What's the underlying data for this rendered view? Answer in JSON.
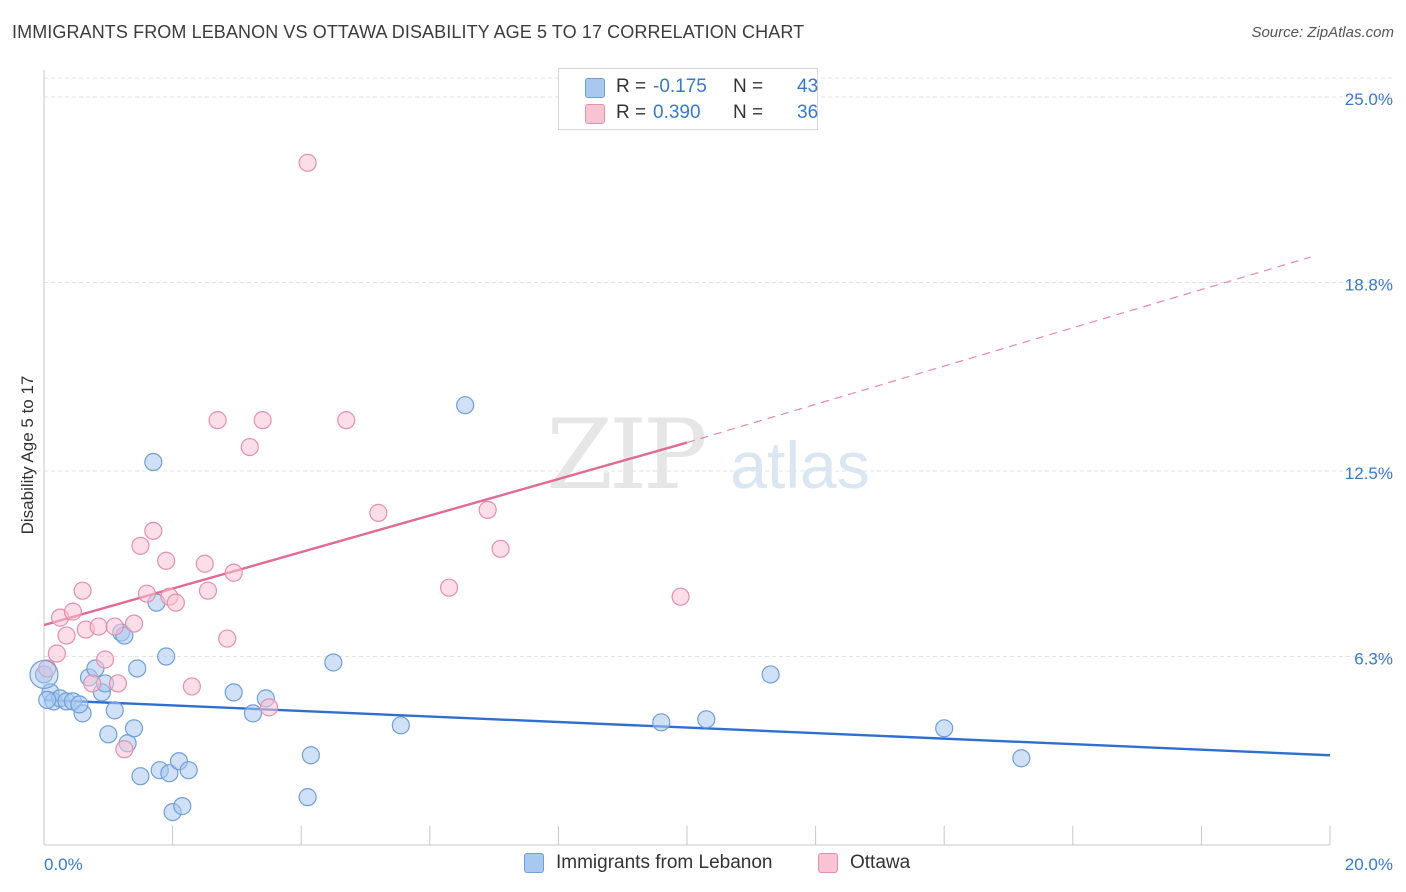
{
  "title": "IMMIGRANTS FROM LEBANON VS OTTAWA DISABILITY AGE 5 TO 17 CORRELATION CHART",
  "source": "Source: ZipAtlas.com",
  "watermark": {
    "zip": "ZIP",
    "atlas": "atlas"
  },
  "legend": {
    "rows": [
      {
        "r_label": "R =",
        "r_value": "-0.175",
        "n_label": "N =",
        "n_value": "43",
        "color": "#a9c8f0",
        "border": "#6f9ed8"
      },
      {
        "r_label": "R =",
        "r_value": "0.390",
        "n_label": "N =",
        "n_value": "36",
        "color": "#f8c3d3",
        "border": "#e58fab"
      }
    ]
  },
  "chart_data": {
    "type": "scatter",
    "title": "IMMIGRANTS FROM LEBANON VS OTTAWA DISABILITY AGE 5 TO 17 CORRELATION CHART",
    "xlabel": "",
    "ylabel": "Disability Age 5 to 17",
    "xlim": [
      0,
      20
    ],
    "ylim": [
      0,
      26
    ],
    "x_tick_labels": [
      "0.0%",
      "20.0%"
    ],
    "y_ticks": [
      6.3,
      12.5,
      18.8,
      25.0
    ],
    "y_tick_labels": [
      "6.3%",
      "12.5%",
      "18.8%",
      "25.0%"
    ],
    "grid": true,
    "legend_position": "bottom-center",
    "series": [
      {
        "name": "Immigrants from Lebanon",
        "color": "#a9c8f0",
        "stroke": "#6f9ed8",
        "line_color": "#2f6fd1",
        "trend": {
          "x": [
            0,
            20
          ],
          "y": [
            4.85,
            3.0
          ]
        },
        "points": [
          [
            0.0,
            5.7
          ],
          [
            0.1,
            5.1
          ],
          [
            0.15,
            4.8
          ],
          [
            0.25,
            4.9
          ],
          [
            0.35,
            4.8
          ],
          [
            0.45,
            4.8
          ],
          [
            0.6,
            4.4
          ],
          [
            0.7,
            5.6
          ],
          [
            0.8,
            5.9
          ],
          [
            0.9,
            5.1
          ],
          [
            0.95,
            5.4
          ],
          [
            1.0,
            3.7
          ],
          [
            1.1,
            4.5
          ],
          [
            1.2,
            7.1
          ],
          [
            1.3,
            3.4
          ],
          [
            1.4,
            3.9
          ],
          [
            1.45,
            5.9
          ],
          [
            1.5,
            2.3
          ],
          [
            1.7,
            12.8
          ],
          [
            1.75,
            8.1
          ],
          [
            1.8,
            2.5
          ],
          [
            1.9,
            6.3
          ],
          [
            1.95,
            2.4
          ],
          [
            2.0,
            1.1
          ],
          [
            2.1,
            2.8
          ],
          [
            2.15,
            1.3
          ],
          [
            2.25,
            2.5
          ],
          [
            2.95,
            5.1
          ],
          [
            3.25,
            4.4
          ],
          [
            3.45,
            4.9
          ],
          [
            4.1,
            1.6
          ],
          [
            4.15,
            3.0
          ],
          [
            4.5,
            6.1
          ],
          [
            5.55,
            4.0
          ],
          [
            6.55,
            14.7
          ],
          [
            9.6,
            4.1
          ],
          [
            10.3,
            4.2
          ],
          [
            11.3,
            5.7
          ],
          [
            14.0,
            3.9
          ],
          [
            15.2,
            2.9
          ],
          [
            0.05,
            4.85
          ],
          [
            0.55,
            4.7
          ],
          [
            1.25,
            7.0
          ]
        ]
      },
      {
        "name": "Ottawa",
        "color": "#f8c3d3",
        "stroke": "#e58fab",
        "line_color": "#e06b93",
        "trend": {
          "x": [
            0,
            10.0
          ],
          "y": [
            7.35,
            13.45
          ]
        },
        "trend_dashed": {
          "x": [
            10.0,
            19.7
          ],
          "y": [
            13.45,
            19.65
          ]
        },
        "points": [
          [
            0.05,
            5.9
          ],
          [
            0.2,
            6.4
          ],
          [
            0.25,
            7.6
          ],
          [
            0.35,
            7.0
          ],
          [
            0.45,
            7.8
          ],
          [
            0.6,
            8.5
          ],
          [
            0.65,
            7.2
          ],
          [
            0.75,
            5.4
          ],
          [
            0.85,
            7.3
          ],
          [
            0.95,
            6.2
          ],
          [
            1.1,
            7.3
          ],
          [
            1.15,
            5.4
          ],
          [
            1.25,
            3.2
          ],
          [
            1.4,
            7.4
          ],
          [
            1.5,
            10.0
          ],
          [
            1.6,
            8.4
          ],
          [
            1.7,
            10.5
          ],
          [
            1.9,
            9.5
          ],
          [
            1.95,
            8.3
          ],
          [
            2.05,
            8.1
          ],
          [
            2.3,
            5.3
          ],
          [
            2.5,
            9.4
          ],
          [
            2.55,
            8.5
          ],
          [
            2.7,
            14.2
          ],
          [
            2.85,
            6.9
          ],
          [
            2.95,
            9.1
          ],
          [
            3.2,
            13.3
          ],
          [
            3.4,
            14.2
          ],
          [
            3.5,
            4.6
          ],
          [
            4.1,
            22.8
          ],
          [
            4.7,
            14.2
          ],
          [
            5.2,
            11.1
          ],
          [
            6.3,
            8.6
          ],
          [
            6.9,
            11.2
          ],
          [
            7.1,
            9.9
          ],
          [
            9.9,
            8.3
          ]
        ]
      }
    ]
  }
}
